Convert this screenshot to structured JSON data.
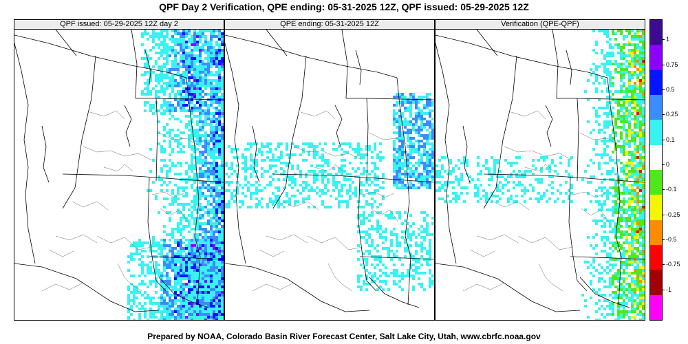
{
  "title": "QPF Day 2 Verification, QPE ending: 05-31-2025 12Z, QPF issued: 05-29-2025 12Z",
  "footer": "Prepared by NOAA, Colorado Basin River Forecast Center, Salt Lake City, Utah, www.cbrfc.noaa.gov",
  "panels": [
    {
      "id": "qpf",
      "label": "QPF issued: 05-29-2025 12Z day 2"
    },
    {
      "id": "qpe",
      "label": "QPE ending: 05-31-2025 12Z"
    },
    {
      "id": "verif",
      "label": "Verification (QPE-QPF)"
    }
  ],
  "colorbar": {
    "labels": [
      "1",
      "0.75",
      "0.5",
      "0.25",
      "0.1",
      "0",
      "-0.1",
      "-0.25",
      "-0.5",
      "-0.75",
      "-1"
    ],
    "colors": [
      "#3c0b8f",
      "#8b00ff",
      "#0014ff",
      "#3a8cff",
      "#39f2f2",
      "#ffffff",
      "#4fe81a",
      "#f5f500",
      "#ff8c00",
      "#ff0000",
      "#a10000",
      "#ff00ff"
    ]
  }
}
